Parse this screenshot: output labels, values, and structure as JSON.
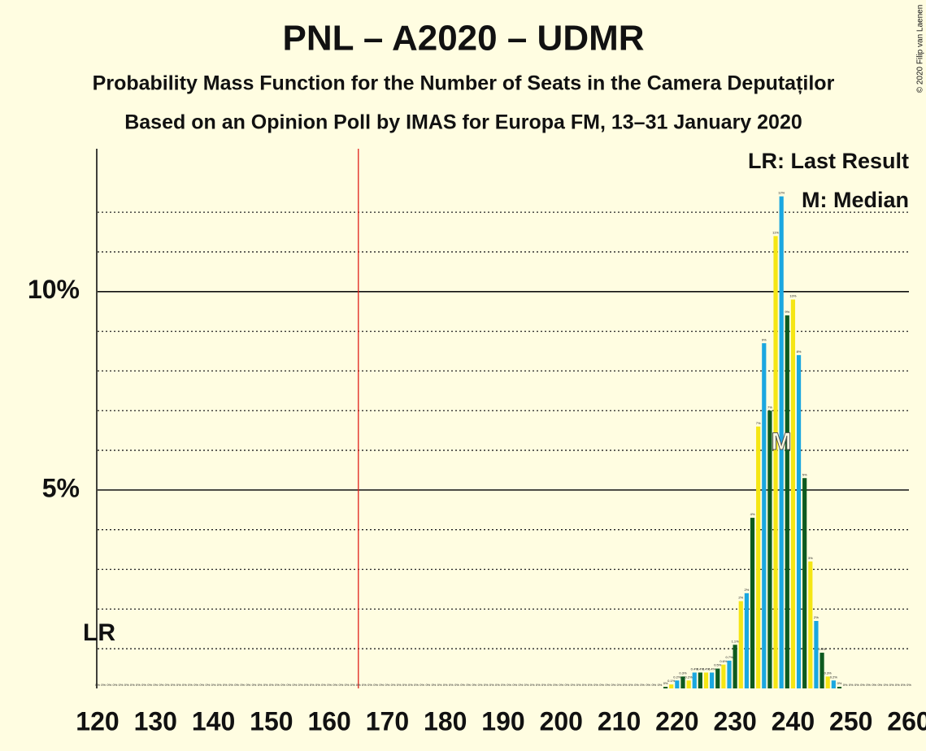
{
  "chart_data": {
    "type": "bar",
    "title": "PNL – A2020 – UDMR",
    "subtitle": "Probability Mass Function for the Number of Seats in the Camera Deputaților",
    "subtitle2": "Based on an Opinion Poll by IMAS for Europa FM, 13–31 January 2020",
    "copyright": "© 2020 Filip van Laenen",
    "legend": [
      "LR: Last Result",
      "M: Median"
    ],
    "legend_position": "upper right",
    "last_result_marker": "LR",
    "last_result": 120,
    "median_marker": "M",
    "median": 238,
    "majority_line": 165,
    "majority_color": "#e0201b",
    "colors": [
      "#f5e614",
      "#1aa7e0",
      "#0d5a1f"
    ],
    "x": [
      120,
      121,
      122,
      123,
      124,
      125,
      126,
      127,
      128,
      129,
      130,
      131,
      132,
      133,
      134,
      135,
      136,
      137,
      138,
      139,
      140,
      141,
      142,
      143,
      144,
      145,
      146,
      147,
      148,
      149,
      150,
      151,
      152,
      153,
      154,
      155,
      156,
      157,
      158,
      159,
      160,
      161,
      162,
      163,
      164,
      165,
      166,
      167,
      168,
      169,
      170,
      171,
      172,
      173,
      174,
      175,
      176,
      177,
      178,
      179,
      180,
      181,
      182,
      183,
      184,
      185,
      186,
      187,
      188,
      189,
      190,
      191,
      192,
      193,
      194,
      195,
      196,
      197,
      198,
      199,
      200,
      201,
      202,
      203,
      204,
      205,
      206,
      207,
      208,
      209,
      210,
      211,
      212,
      213,
      214,
      215,
      216,
      217,
      218,
      219,
      220,
      221,
      222,
      223,
      224,
      225,
      226,
      227,
      228,
      229,
      230,
      231,
      232,
      233,
      234,
      235,
      236,
      237,
      238,
      239,
      240,
      241,
      242,
      243,
      244,
      245,
      246,
      247,
      248,
      249,
      250,
      251,
      252,
      253,
      254,
      255,
      256,
      257,
      258,
      259,
      260
    ],
    "values": [
      0,
      0,
      0,
      0,
      0,
      0,
      0,
      0,
      0,
      0,
      0,
      0,
      0,
      0,
      0,
      0,
      0,
      0,
      0,
      0,
      0,
      0,
      0,
      0,
      0,
      0,
      0,
      0,
      0,
      0,
      0,
      0,
      0,
      0,
      0,
      0,
      0,
      0,
      0,
      0,
      0,
      0,
      0,
      0,
      0,
      0,
      0,
      0,
      0,
      0,
      0,
      0,
      0,
      0,
      0,
      0,
      0,
      0,
      0,
      0,
      0,
      0,
      0,
      0,
      0,
      0,
      0,
      0,
      0,
      0,
      0,
      0,
      0,
      0,
      0,
      0,
      0,
      0,
      0,
      0,
      0,
      0,
      0,
      0,
      0,
      0,
      0,
      0,
      0,
      0,
      0,
      0,
      0,
      0,
      0,
      0,
      0,
      0,
      0.04,
      0.1,
      0.2,
      0.3,
      0.2,
      0.4,
      0.4,
      0.4,
      0.4,
      0.5,
      0.6,
      0.7,
      1.1,
      2.2,
      2.4,
      4.3,
      6.6,
      8.7,
      7,
      11.4,
      12.4,
      9.4,
      9.8,
      8.4,
      5.3,
      3.2,
      1.7,
      0.9,
      0.3,
      0.2,
      0.04,
      0,
      0,
      0,
      0,
      0,
      0,
      0,
      0,
      0,
      0,
      0,
      0
    ],
    "value_labels": [
      "0%",
      "0%",
      "0%",
      "0%",
      "0%",
      "0%",
      "0%",
      "0%",
      "0%",
      "0%",
      "0%",
      "0%",
      "0%",
      "0%",
      "0%",
      "0%",
      "0%",
      "0%",
      "0%",
      "0%",
      "0%",
      "0%",
      "0%",
      "0%",
      "0%",
      "0%",
      "0%",
      "0%",
      "0%",
      "0%",
      "0%",
      "0%",
      "0%",
      "0%",
      "0%",
      "0%",
      "0%",
      "0%",
      "0%",
      "0%",
      "0%",
      "0%",
      "0%",
      "0%",
      "0%",
      "0%",
      "0%",
      "0%",
      "0%",
      "0%",
      "0%",
      "0%",
      "0%",
      "0%",
      "0%",
      "0%",
      "0%",
      "0%",
      "0%",
      "0%",
      "0%",
      "0%",
      "0%",
      "0%",
      "0%",
      "0%",
      "0%",
      "0%",
      "0%",
      "0%",
      "0%",
      "0%",
      "0%",
      "0%",
      "0%",
      "0%",
      "0%",
      "0%",
      "0%",
      "0%",
      "0%",
      "0%",
      "0%",
      "0%",
      "0%",
      "0%",
      "0%",
      "0%",
      "0%",
      "0%",
      "0%",
      "0%",
      "0%",
      "0%",
      "0%",
      "0%",
      "0%",
      "0%",
      "0%",
      "0.1%",
      "0.2%",
      "0.3%",
      "0.2%",
      "0.4%",
      "0.4%",
      "0.4%",
      "0.4%",
      "0.5%",
      "0.6%",
      "0.7%",
      "1.1%",
      "2%",
      "2%",
      "4%",
      "7%",
      "9%",
      "7%",
      "11%",
      "12%",
      "9%",
      "10%",
      "8%",
      "5%",
      "3%",
      "2%",
      "0.9%",
      "0.3%",
      "0.2%",
      "0%",
      "0%",
      "0%",
      "0%",
      "0%",
      "0%",
      "0%",
      "0%",
      "0%",
      "0%",
      "0%",
      "0%",
      "0%"
    ],
    "xlim": [
      120,
      260
    ],
    "xticks": [
      120,
      130,
      140,
      150,
      160,
      170,
      180,
      190,
      200,
      210,
      220,
      230,
      240,
      250,
      260
    ],
    "ylim": [
      0,
      13.6
    ],
    "yticks": [
      {
        "value": 5,
        "label": "5%"
      },
      {
        "value": 10,
        "label": "10%"
      }
    ],
    "minor_yticks": [
      1,
      2,
      3,
      4,
      6,
      7,
      8,
      9,
      11,
      12
    ],
    "grid": true
  }
}
